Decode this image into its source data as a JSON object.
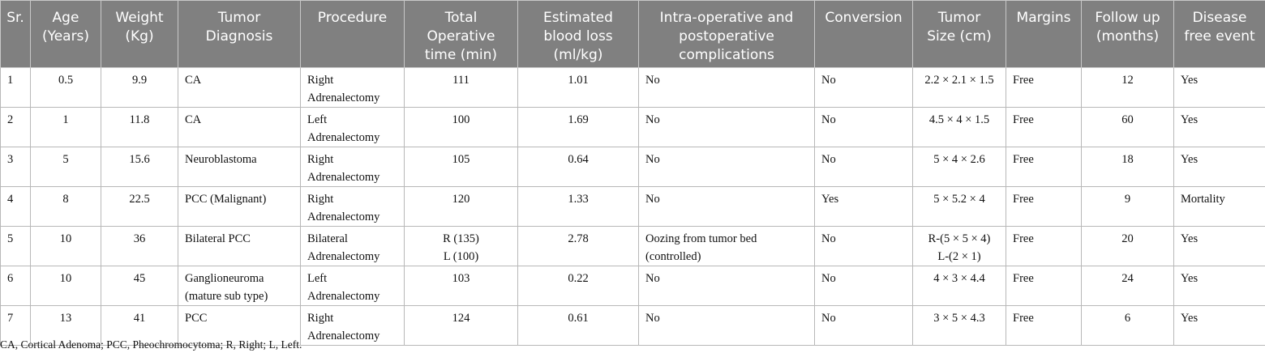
{
  "table": {
    "header": [
      [
        "Sr."
      ],
      [
        "Age",
        "(Years)"
      ],
      [
        "Weight",
        "(Kg)"
      ],
      [
        "Tumor",
        "Diagnosis"
      ],
      [
        "Procedure"
      ],
      [
        "Total",
        "Operative",
        "time (min)"
      ],
      [
        "Estimated",
        "blood loss",
        "(ml/kg)"
      ],
      [
        "Intra-operative and",
        "postoperative",
        "complications"
      ],
      [
        "Conversion"
      ],
      [
        "Tumor",
        "Size (cm)"
      ],
      [
        "Margins"
      ],
      [
        "Follow up",
        "(months)"
      ],
      [
        "Disease",
        "free event"
      ]
    ],
    "rows": [
      [
        "1",
        "0.5",
        "9.9",
        "CA",
        [
          "Right",
          "Adrenalectomy"
        ],
        "111",
        "1.01",
        "No",
        "No",
        "2.2 × 2.1 × 1.5",
        "Free",
        "12",
        "Yes"
      ],
      [
        "2",
        "1",
        "11.8",
        "CA",
        [
          "Left",
          "Adrenalectomy"
        ],
        "100",
        "1.69",
        "No",
        "No",
        "4.5 × 4 × 1.5",
        "Free",
        "60",
        "Yes"
      ],
      [
        "3",
        "5",
        "15.6",
        "Neuroblastoma",
        [
          "Right",
          "Adrenalectomy"
        ],
        "105",
        "0.64",
        "No",
        "No",
        "5 × 4 × 2.6",
        "Free",
        "18",
        "Yes"
      ],
      [
        "4",
        "8",
        "22.5",
        "PCC (Malignant)",
        [
          "Right",
          "Adrenalectomy"
        ],
        "120",
        "1.33",
        "No",
        "Yes",
        "5 × 5.2 × 4",
        "Free",
        "9",
        "Mortality"
      ],
      [
        "5",
        "10",
        "36",
        "Bilateral PCC",
        [
          "Bilateral",
          "Adrenalectomy"
        ],
        [
          "R (135)",
          "L (100)"
        ],
        "2.78",
        [
          "Oozing from tumor bed",
          "(controlled)"
        ],
        "No",
        [
          "R-(5 × 5 × 4)",
          "L-(2 × 1)"
        ],
        "Free",
        "20",
        "Yes"
      ],
      [
        "6",
        "10",
        "45",
        [
          "Ganglioneuroma",
          "(mature sub type)"
        ],
        [
          "Left",
          "Adrenalectomy"
        ],
        "103",
        "0.22",
        "No",
        "No",
        "4 × 3 × 4.4",
        "Free",
        "24",
        "Yes"
      ],
      [
        "7",
        "13",
        "41",
        "PCC",
        [
          "Right",
          "Adrenalectomy"
        ],
        "124",
        "0.61",
        "No",
        "No",
        "3 × 5 × 4.3",
        "Free",
        "6",
        "Yes"
      ]
    ]
  },
  "footnote": "CA, Cortical Adenoma; PCC, Pheochromocytoma; R, Right; L, Left."
}
